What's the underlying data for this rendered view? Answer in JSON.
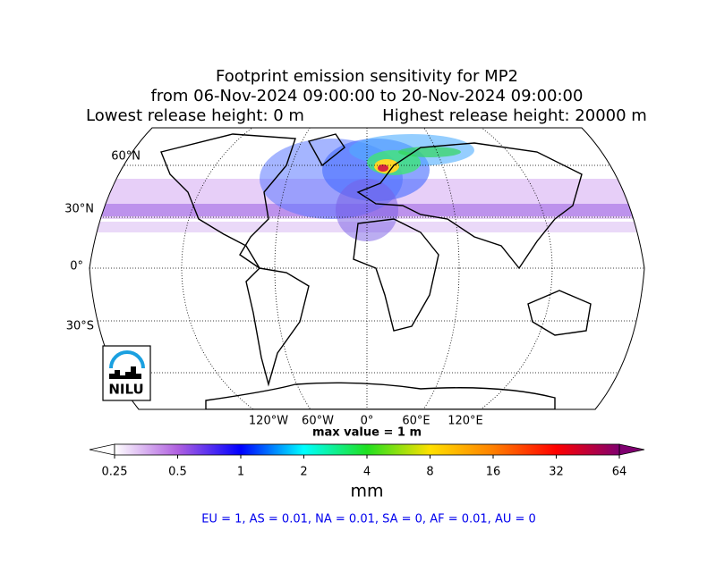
{
  "title": [
    "Footprint emission sensitivity for MP2",
    "from 06-Nov-2024 09:00:00 to 20-Nov-2024 09:00:00",
    "Lowest release height: 0 m",
    "Highest release height: 20000 m"
  ],
  "lat_labels": [
    "60°N",
    "30°N",
    "0°",
    "30°S"
  ],
  "lon_labels": [
    "120°W",
    "60°W",
    "0°",
    "60°E",
    "120°E"
  ],
  "max_value": "max value = 1 m",
  "logo": "NILU",
  "colorbar": {
    "ticks": [
      0.25,
      0.5,
      1,
      2,
      4,
      8,
      16,
      32,
      64
    ],
    "unit": "mm",
    "colors": [
      "#ffffff",
      "#b060e0",
      "#0000ff",
      "#00ffff",
      "#20e020",
      "#ffe000",
      "#ff8000",
      "#ff0000",
      "#800070"
    ]
  },
  "summary": "EU = 1,  AS = 0.01,  NA = 0.01,  SA = 0,  AF = 0.01,  AU = 0"
}
